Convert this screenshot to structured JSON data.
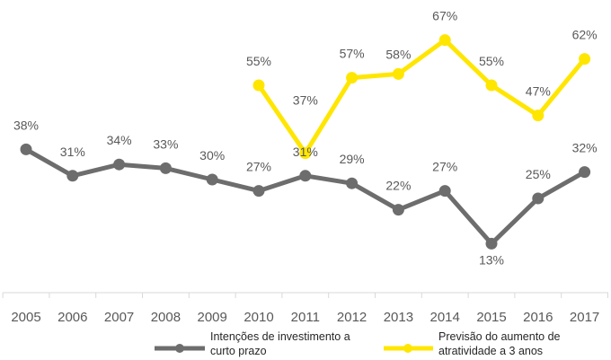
{
  "chart_data": {
    "type": "line",
    "title": "",
    "xlabel": "",
    "ylabel": "",
    "categories": [
      "2005",
      "2006",
      "2007",
      "2008",
      "2009",
      "2010",
      "2011",
      "2012",
      "2013",
      "2014",
      "2015",
      "2016",
      "2017"
    ],
    "ylim": [
      0,
      70
    ],
    "grid": false,
    "legend_position": "bottom",
    "series": [
      {
        "name_lines": [
          "Intenções de investimento a",
          "curto prazo"
        ],
        "color": "#6d6d6d",
        "values": [
          38,
          31,
          34,
          33,
          30,
          27,
          31,
          29,
          22,
          27,
          13,
          25,
          32
        ],
        "labels": [
          "38%",
          "31%",
          "34%",
          "33%",
          "30%",
          "27%",
          "31%",
          "29%",
          "22%",
          "27%",
          "13%",
          "25%",
          "32%"
        ]
      },
      {
        "name_lines": [
          "Previsão do aumento de",
          "atratividade a 3 anos"
        ],
        "color": "#ffe600",
        "values": [
          null,
          null,
          null,
          null,
          null,
          55,
          37,
          57,
          58,
          67,
          55,
          47,
          62
        ],
        "labels": [
          null,
          null,
          null,
          null,
          null,
          "55%",
          "37%",
          "57%",
          "58%",
          "67%",
          "55%",
          "47%",
          "62%"
        ]
      }
    ]
  }
}
